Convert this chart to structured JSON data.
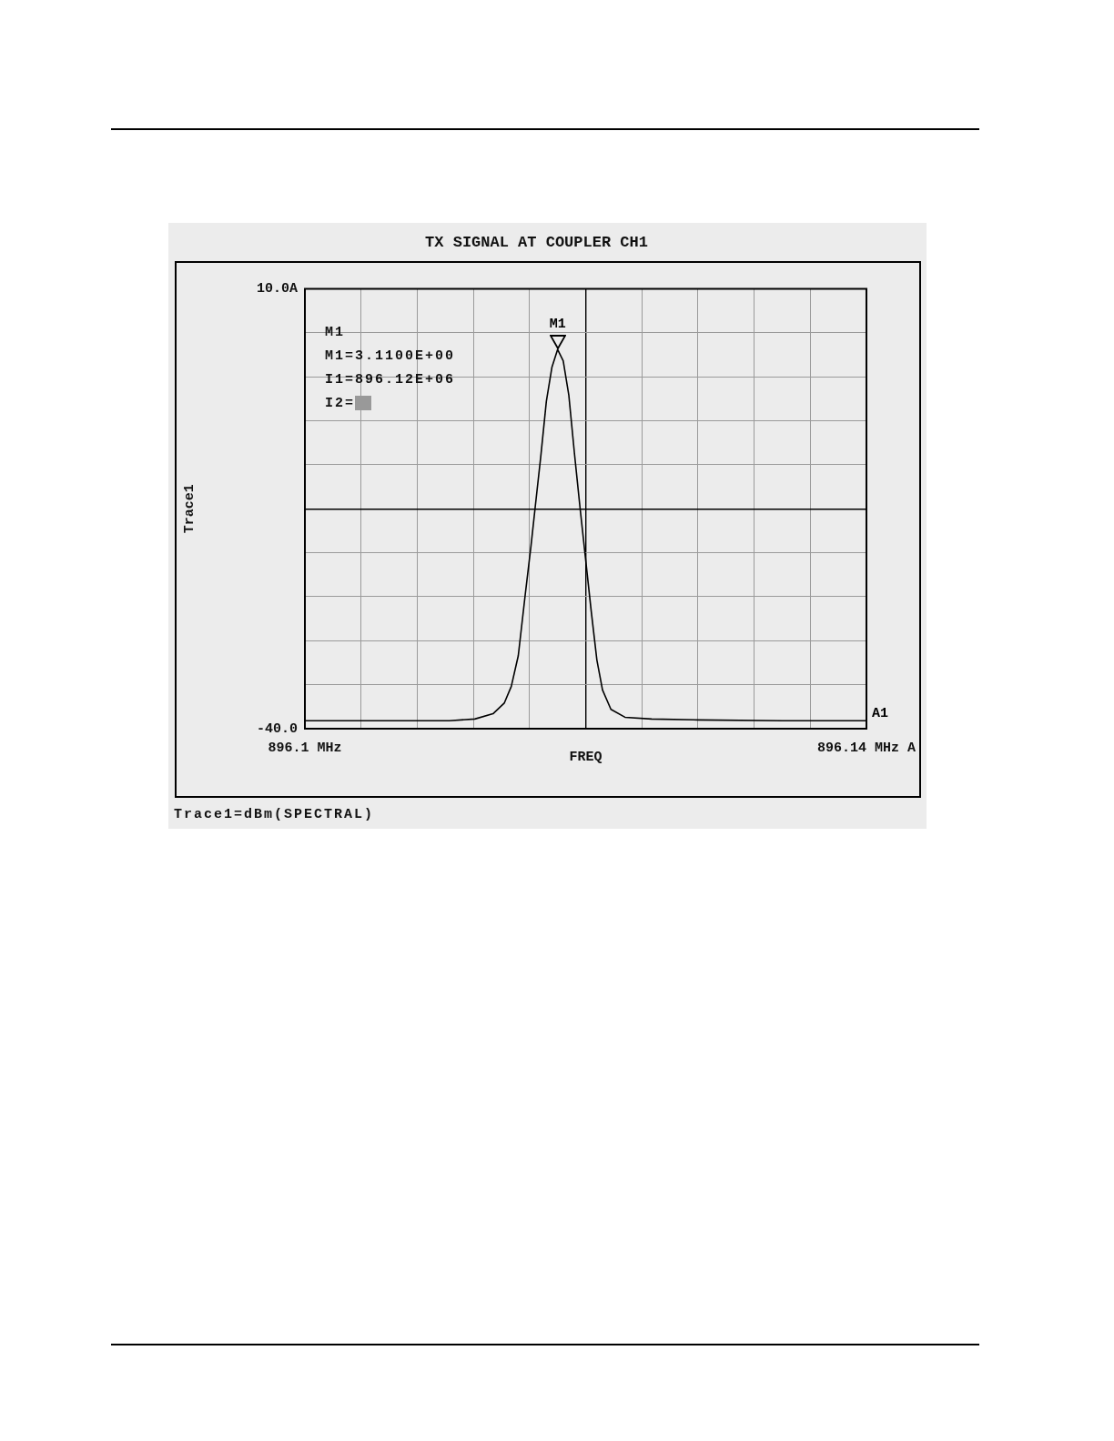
{
  "chart_data": {
    "type": "line",
    "title": "TX SIGNAL AT COUPLER CH1",
    "xlabel": "FREQ",
    "ylabel": "Trace1",
    "series": [
      {
        "color": "#000000",
        "x": [
          896.1,
          896.104,
          896.108,
          896.1103,
          896.1121,
          896.1134,
          896.1142,
          896.1147,
          896.1152,
          896.1157,
          896.1161,
          896.1164,
          896.1168,
          896.1172,
          896.1176,
          896.118,
          896.1184,
          896.1188,
          896.1192,
          896.1196,
          896.12,
          896.1204,
          896.1208,
          896.1212,
          896.1218,
          896.1228,
          896.1247,
          896.128,
          896.134,
          896.14
        ],
        "values": [
          -39.1,
          -39.1,
          -39.1,
          -39.1,
          -38.9,
          -38.3,
          -37.1,
          -35.2,
          -31.7,
          -24.7,
          -19.3,
          -14.9,
          -9.1,
          -2.8,
          1.1,
          3.1,
          1.8,
          -2.1,
          -8.7,
          -14.9,
          -20.8,
          -26.7,
          -32.2,
          -35.6,
          -37.8,
          -38.7,
          -38.9,
          -39.0,
          -39.1,
          -39.1
        ]
      }
    ],
    "xlim": [
      896.1,
      896.14
    ],
    "xticks": [
      {
        "value": 896.1,
        "label": "896.1 MHz"
      },
      {
        "value": 896.104,
        "label": null
      },
      {
        "value": 896.108,
        "label": null
      },
      {
        "value": 896.112,
        "label": null
      },
      {
        "value": 896.116,
        "label": null
      },
      {
        "value": 896.12,
        "label": null
      },
      {
        "value": 896.124,
        "label": null
      },
      {
        "value": 896.128,
        "label": null
      },
      {
        "value": 896.132,
        "label": null
      },
      {
        "value": 896.136,
        "label": null
      },
      {
        "value": 896.14,
        "label": "896.14 MHz A"
      }
    ],
    "ylim": [
      -40,
      10
    ],
    "yticks": [
      {
        "value": -40,
        "label": "-40.0"
      },
      {
        "value": -35,
        "label": null
      },
      {
        "value": -30,
        "label": null
      },
      {
        "value": -25,
        "label": null
      },
      {
        "value": -20,
        "label": null
      },
      {
        "value": -15,
        "label": null
      },
      {
        "value": -10,
        "label": null
      },
      {
        "value": -5,
        "label": null
      },
      {
        "value": 0,
        "label": null
      },
      {
        "value": 5,
        "label": null
      },
      {
        "value": 10,
        "label": "10.0A"
      }
    ],
    "annotations": [
      "M1",
      "M1=3.1100E+00",
      "I1=896.12E+06",
      "I2=",
      {
        "text": "M1",
        "x": 896.118,
        "y": 3.1
      },
      {
        "text": "A1",
        "x": 896.14,
        "y": -39.1
      },
      "Trace1=dBm(SPECTRAL)"
    ],
    "grid": true,
    "legend": false,
    "marker": "none",
    "line_style": "solid"
  }
}
